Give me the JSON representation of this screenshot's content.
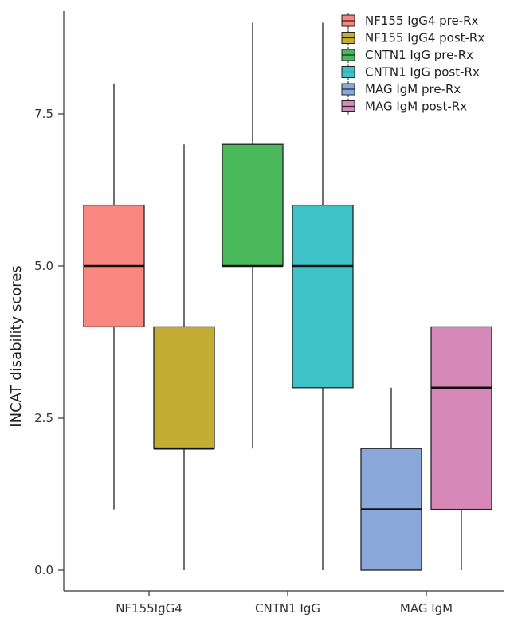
{
  "chart_data": {
    "type": "box",
    "title": "",
    "xlabel": "",
    "ylabel": "INCAT disability scores",
    "ylim": [
      0,
      9
    ],
    "yticks": [
      "0.0",
      "2.5",
      "5.0",
      "7.5"
    ],
    "categories": [
      "NF155IgG4",
      "CNTN1 IgG",
      "MAG IgM"
    ],
    "legend_position": "top-right",
    "grid": false,
    "series": [
      {
        "name": "NF155 IgG4 pre-Rx",
        "category": "NF155IgG4",
        "color": "#F8877F",
        "min": 1,
        "q1": 4,
        "median": 5,
        "q3": 6,
        "max": 8
      },
      {
        "name": "NF155 IgG4 post-Rx",
        "category": "NF155IgG4",
        "color": "#C3AD32",
        "min": 0,
        "q1": 2,
        "median": 2,
        "q3": 4,
        "max": 7
      },
      {
        "name": "CNTN1 IgG pre-Rx",
        "category": "CNTN1 IgG",
        "color": "#49B95B",
        "min": 2,
        "q1": 5,
        "median": 5,
        "q3": 7,
        "max": 9
      },
      {
        "name": "CNTN1 IgG post-Rx",
        "category": "CNTN1 IgG",
        "color": "#3FC1C8",
        "min": 0,
        "q1": 3,
        "median": 5,
        "q3": 6,
        "max": 9
      },
      {
        "name": "MAG IgM pre-Rx",
        "category": "MAG IgM",
        "color": "#8AA9DA",
        "min": 0,
        "q1": 0,
        "median": 1,
        "q3": 2,
        "max": 3
      },
      {
        "name": "MAG IgM post-Rx",
        "category": "MAG IgM",
        "color": "#D689B8",
        "min": 0,
        "q1": 1,
        "median": 3,
        "q3": 4,
        "max": 4
      }
    ]
  }
}
